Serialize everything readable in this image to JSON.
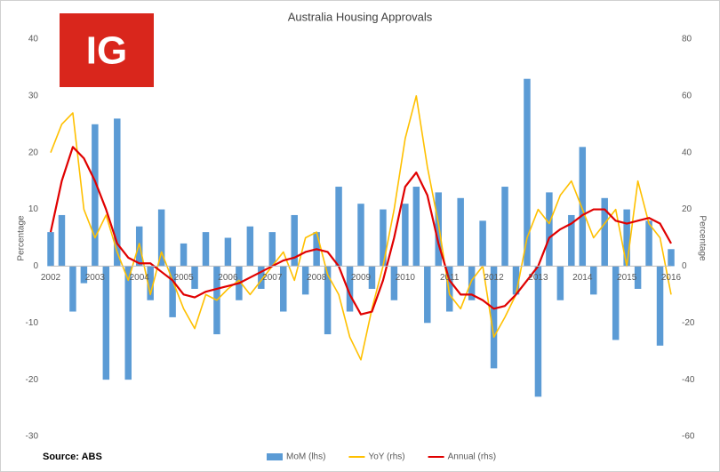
{
  "logo": "IG",
  "chart_data": {
    "type": "bar-line",
    "title": "Australia Housing Approvals",
    "ylabel": "Percentage",
    "y2label": "Percentage",
    "source": "Source: ABS",
    "categories": [
      "2002",
      null,
      null,
      null,
      "2003",
      null,
      null,
      null,
      "2004",
      null,
      null,
      null,
      "2005",
      null,
      null,
      null,
      "2006",
      null,
      null,
      null,
      "2007",
      null,
      null,
      null,
      "2008",
      null,
      null,
      null,
      "2009",
      null,
      null,
      null,
      "2010",
      null,
      null,
      null,
      "2011",
      null,
      null,
      null,
      "2012",
      null,
      null,
      null,
      "2013",
      null,
      null,
      null,
      "2014",
      null,
      null,
      null,
      "2015",
      null,
      null,
      null,
      "2016"
    ],
    "ylim": [
      -30,
      40
    ],
    "yticks": [
      -30,
      -20,
      -10,
      0,
      10,
      20,
      30,
      40
    ],
    "y2lim": [
      -60,
      80
    ],
    "y2ticks": [
      -60,
      -40,
      -20,
      0,
      20,
      40,
      60,
      80
    ],
    "series": [
      {
        "name": "MoM (lhs)",
        "kind": "bar",
        "color": "#5b9bd5",
        "values": [
          6,
          9,
          -8,
          -3,
          25,
          -20,
          26,
          -20,
          7,
          -6,
          10,
          -9,
          4,
          -4,
          6,
          -12,
          5,
          -6,
          7,
          -4,
          6,
          -8,
          9,
          -5,
          6,
          -12,
          14,
          -8,
          11,
          -4,
          10,
          -6,
          11,
          14,
          -10,
          13,
          -8,
          12,
          -6,
          8,
          -18,
          14,
          -5,
          33,
          -23,
          13,
          -6,
          9,
          21,
          -5,
          12,
          -13,
          10,
          -4,
          8,
          -14,
          3
        ]
      },
      {
        "name": "YoY (rhs)",
        "kind": "line",
        "axis": "y2",
        "color": "#ffc000",
        "values": [
          40,
          50,
          54,
          20,
          10,
          18,
          5,
          -5,
          8,
          -10,
          5,
          -5,
          -15,
          -22,
          -10,
          -12,
          -8,
          -5,
          -10,
          -5,
          0,
          5,
          -5,
          10,
          12,
          -3,
          -10,
          -25,
          -33,
          -15,
          0,
          20,
          45,
          60,
          35,
          15,
          -10,
          -15,
          -5,
          0,
          -25,
          -18,
          -10,
          10,
          20,
          15,
          25,
          30,
          20,
          10,
          15,
          20,
          0,
          30,
          15,
          10,
          -10
        ]
      },
      {
        "name": "Annual (rhs)",
        "kind": "line",
        "axis": "y2",
        "color": "#e00000",
        "values": [
          12,
          30,
          42,
          38,
          30,
          20,
          8,
          3,
          1,
          1,
          -2,
          -5,
          -10,
          -11,
          -9,
          -8,
          -7,
          -6,
          -4,
          -2,
          0,
          2,
          3,
          5,
          6,
          5,
          0,
          -10,
          -17,
          -16,
          -5,
          10,
          28,
          33,
          25,
          8,
          -5,
          -10,
          -10,
          -12,
          -15,
          -14,
          -10,
          -5,
          0,
          10,
          13,
          15,
          18,
          20,
          20,
          16,
          15,
          16,
          17,
          15,
          8
        ]
      }
    ],
    "grid": false
  }
}
